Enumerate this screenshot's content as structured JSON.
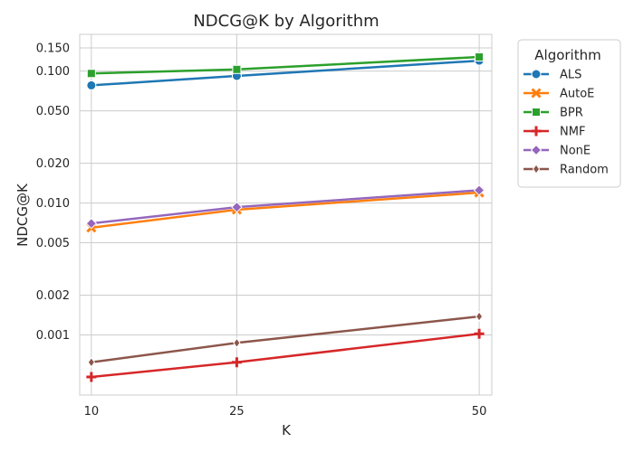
{
  "chart_data": {
    "type": "line",
    "title": "NDCG@K by Algorithm",
    "xlabel": "K",
    "ylabel": "NDCG@K",
    "x": [
      10,
      25,
      50
    ],
    "x_tick_labels": [
      "10",
      "25",
      "50"
    ],
    "yscale": "log",
    "ylim": [
      0.00035,
      0.19
    ],
    "y_ticks": [
      0.001,
      0.002,
      0.005,
      0.01,
      0.02,
      0.05,
      0.1,
      0.15
    ],
    "y_tick_labels": [
      "0.001",
      "0.002",
      "0.005",
      "0.010",
      "0.020",
      "0.050",
      "0.100",
      "0.150"
    ],
    "grid": true,
    "legend": {
      "title": "Algorithm",
      "placement": "outside-top-right"
    },
    "series": [
      {
        "name": "ALS",
        "values": [
          0.078,
          0.092,
          0.12
        ],
        "color": "#1f77b4",
        "marker": "circle"
      },
      {
        "name": "AutoE",
        "values": [
          0.0065,
          0.0089,
          0.012
        ],
        "color": "#ff7f0e",
        "marker": "x"
      },
      {
        "name": "BPR",
        "values": [
          0.096,
          0.103,
          0.128
        ],
        "color": "#2ca02c",
        "marker": "square"
      },
      {
        "name": "NMF",
        "values": [
          0.00048,
          0.00062,
          0.00102
        ],
        "color": "#d62728",
        "marker": "plus"
      },
      {
        "name": "NonE",
        "values": [
          0.007,
          0.0093,
          0.0125
        ],
        "color": "#9467bd",
        "marker": "diamond"
      },
      {
        "name": "Random",
        "values": [
          0.00062,
          0.00087,
          0.00138
        ],
        "color": "#8c564b",
        "marker": "thin-diamond"
      }
    ]
  }
}
